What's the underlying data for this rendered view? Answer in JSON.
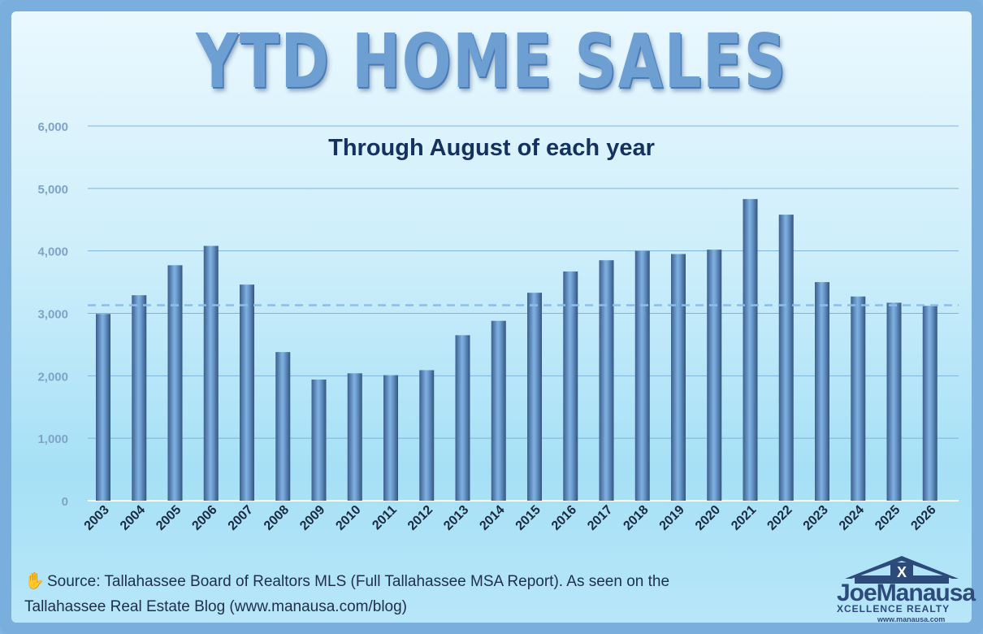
{
  "chart_data": {
    "type": "bar",
    "title": "YTD HOME SALES",
    "subtitle": "Through August of each year",
    "categories": [
      "2003",
      "2004",
      "2005",
      "2006",
      "2007",
      "2008",
      "2009",
      "2010",
      "2011",
      "2012",
      "2013",
      "2014",
      "2015",
      "2016",
      "2017",
      "2018",
      "2019",
      "2020",
      "2021",
      "2022",
      "2023",
      "2024",
      "2025",
      "2026"
    ],
    "values": [
      2990,
      3290,
      3770,
      4080,
      3460,
      2380,
      1940,
      2040,
      2010,
      2090,
      2650,
      2880,
      3330,
      3670,
      3850,
      4000,
      3950,
      4020,
      4830,
      4580,
      3500,
      3270,
      3170,
      3120
    ],
    "reference_line": {
      "value": 3130,
      "style": "dashed"
    },
    "ylim": [
      0,
      6000
    ],
    "yticks": [
      "0",
      "1,000",
      "2,000",
      "3,000",
      "4,000",
      "5,000",
      "6,000"
    ],
    "ytick_values": [
      0,
      1000,
      2000,
      3000,
      4000,
      5000,
      6000
    ],
    "grid": true,
    "xlabel": "",
    "ylabel": "",
    "colors": {
      "bar": "#6e9fd3",
      "bar_dark": "#3b5f8e",
      "grid": "#7fb3d8",
      "tick_text": "#7fa3c8",
      "xtick_text": "#1b2a40"
    }
  },
  "footer": {
    "source_line1": "Source: Tallahassee Board of Realtors MLS (Full Tallahassee MSA Report). As seen on the",
    "source_line2": "Tallahassee Real Estate Blog (www.manausa.com/blog)",
    "icon": "hand-icon"
  },
  "logo": {
    "name": "JoeManausa",
    "tagline": "XCELLENCE REALTY",
    "url": "www.manausa.com"
  }
}
